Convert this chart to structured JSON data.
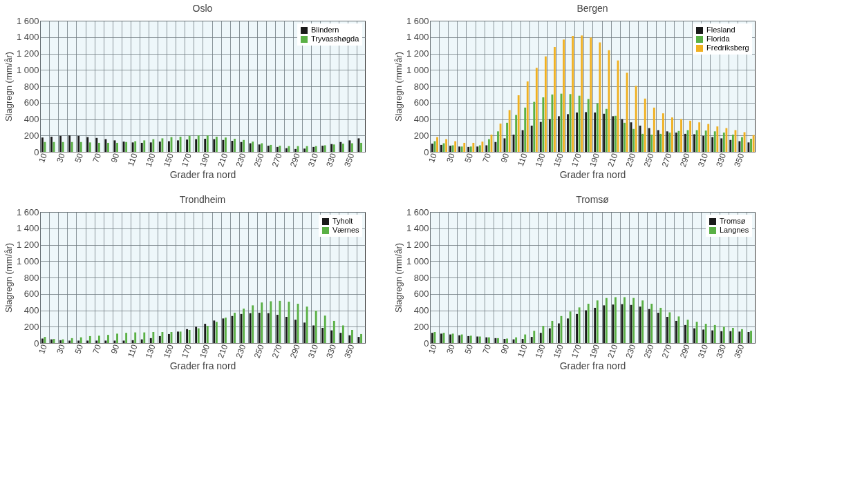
{
  "chart_data": [
    {
      "type": "bar",
      "title": "Oslo",
      "xlabel": "Grader fra nord",
      "ylabel": "Slagregn (mm/år)",
      "categories": [
        "10",
        null,
        "30",
        null,
        "50",
        null,
        "70",
        null,
        "90",
        null,
        "110",
        null,
        "130",
        null,
        "150",
        null,
        "170",
        null,
        "190",
        null,
        "210",
        null,
        "230",
        null,
        "250",
        null,
        "270",
        null,
        "290",
        null,
        "310",
        null,
        "330",
        null,
        "350",
        null
      ],
      "series": [
        {
          "name": "Blindern",
          "color": "#1a1a1a",
          "values": [
            175,
            185,
            195,
            200,
            195,
            180,
            170,
            155,
            140,
            125,
            115,
            110,
            115,
            125,
            130,
            140,
            150,
            155,
            160,
            155,
            145,
            135,
            120,
            105,
            90,
            75,
            60,
            45,
            35,
            40,
            60,
            75,
            95,
            120,
            140,
            165
          ]
        },
        {
          "name": "Tryvasshøgda",
          "color": "#5ab045",
          "values": [
            120,
            120,
            120,
            120,
            120,
            115,
            110,
            110,
            110,
            120,
            130,
            140,
            155,
            165,
            180,
            185,
            195,
            200,
            200,
            185,
            175,
            160,
            145,
            125,
            105,
            85,
            75,
            70,
            70,
            70,
            70,
            80,
            90,
            100,
            105,
            110
          ]
        }
      ],
      "ylim": [
        0,
        1600
      ],
      "yticks": [
        0,
        200,
        400,
        600,
        800,
        {
          "value": 1000,
          "label": "1 000"
        },
        {
          "value": 1200,
          "label": "1 200"
        },
        {
          "value": 1400,
          "label": "1 400"
        },
        {
          "value": 1600,
          "label": "1 600"
        }
      ],
      "grid": true,
      "legend": "top right"
    },
    {
      "type": "bar",
      "title": "Bergen",
      "xlabel": "Grader fra nord",
      "ylabel": "Slagregn (mm/år)",
      "categories": [
        "10",
        null,
        "30",
        null,
        "50",
        null,
        "70",
        null,
        "90",
        null,
        "110",
        null,
        "130",
        null,
        "150",
        null,
        "170",
        null,
        "190",
        null,
        "210",
        null,
        "230",
        null,
        "250",
        null,
        "270",
        null,
        "290",
        null,
        "310",
        null,
        "330",
        null,
        "350",
        null
      ],
      "series": [
        {
          "name": "Flesland",
          "color": "#1a1a1a",
          "values": [
            100,
            85,
            75,
            65,
            60,
            65,
            80,
            120,
            165,
            210,
            265,
            320,
            365,
            400,
            435,
            460,
            480,
            485,
            480,
            465,
            435,
            400,
            360,
            320,
            290,
            265,
            250,
            235,
            220,
            215,
            195,
            180,
            165,
            145,
            130,
            115
          ]
        },
        {
          "name": "Florida",
          "color": "#5ab045",
          "values": [
            130,
            105,
            80,
            65,
            65,
            80,
            155,
            250,
            355,
            450,
            540,
            610,
            665,
            700,
            710,
            705,
            685,
            645,
            590,
            525,
            440,
            355,
            280,
            220,
            210,
            220,
            235,
            255,
            265,
            265,
            260,
            250,
            235,
            210,
            180,
            160
          ]
        },
        {
          "name": "Fredriksberg",
          "color": "#f0b020",
          "values": [
            180,
            155,
            130,
            110,
            110,
            125,
            210,
            345,
            510,
            690,
            860,
            1025,
            1165,
            1280,
            1370,
            1415,
            1420,
            1395,
            1335,
            1240,
            1115,
            965,
            805,
            650,
            540,
            470,
            420,
            400,
            380,
            360,
            340,
            310,
            290,
            265,
            240,
            205
          ]
        }
      ],
      "ylim": [
        0,
        1600
      ],
      "yticks": [
        0,
        200,
        400,
        600,
        800,
        {
          "value": 1000,
          "label": "1 000"
        },
        {
          "value": 1200,
          "label": "1 200"
        },
        {
          "value": 1400,
          "label": "1 400"
        },
        {
          "value": 1600,
          "label": "1 600"
        }
      ],
      "grid": true,
      "legend": "top right"
    },
    {
      "type": "bar",
      "title": "Trondheim",
      "xlabel": "Grader fra nord",
      "ylabel": "Slagregn (mm/år)",
      "categories": [
        "10",
        null,
        "30",
        null,
        "50",
        null,
        "70",
        null,
        "90",
        null,
        "110",
        null,
        "130",
        null,
        "150",
        null,
        "170",
        null,
        "190",
        null,
        "210",
        null,
        "230",
        null,
        "250",
        null,
        "270",
        null,
        "290",
        null,
        "310",
        null,
        "330",
        null,
        "350",
        null
      ],
      "series": [
        {
          "name": "Tyholt",
          "color": "#1a1a1a",
          "values": [
            55,
            45,
            35,
            30,
            30,
            30,
            30,
            30,
            30,
            30,
            35,
            45,
            60,
            85,
            110,
            140,
            170,
            200,
            235,
            275,
            300,
            330,
            355,
            365,
            370,
            365,
            345,
            320,
            285,
            250,
            215,
            185,
            155,
            125,
            95,
            75
          ]
        },
        {
          "name": "Værnes",
          "color": "#5ab045",
          "values": [
            75,
            50,
            45,
            60,
            70,
            85,
            90,
            100,
            115,
            125,
            130,
            130,
            135,
            135,
            135,
            140,
            160,
            180,
            210,
            260,
            310,
            370,
            420,
            460,
            495,
            510,
            515,
            505,
            480,
            445,
            395,
            335,
            270,
            215,
            160,
            110
          ]
        }
      ],
      "ylim": [
        0,
        1600
      ],
      "yticks": [
        0,
        200,
        400,
        600,
        800,
        {
          "value": 1000,
          "label": "1 000"
        },
        {
          "value": 1200,
          "label": "1 200"
        },
        {
          "value": 1400,
          "label": "1 400"
        },
        {
          "value": 1600,
          "label": "1 600"
        }
      ],
      "grid": true,
      "legend": "top right"
    },
    {
      "type": "bar",
      "title": "Tromsø",
      "xlabel": "Grader fra nord",
      "ylabel": "Slagregn (mm/år)",
      "categories": [
        "10",
        null,
        "30",
        null,
        "50",
        null,
        "70",
        null,
        "90",
        null,
        "110",
        null,
        "130",
        null,
        "150",
        null,
        "170",
        null,
        "190",
        null,
        "210",
        null,
        "230",
        null,
        "250",
        null,
        "270",
        null,
        "290",
        null,
        "310",
        null,
        "330",
        null,
        "350",
        null
      ],
      "series": [
        {
          "name": "Tromsø",
          "color": "#1a1a1a",
          "values": [
            125,
            115,
            105,
            95,
            85,
            80,
            70,
            60,
            50,
            45,
            50,
            75,
            125,
            180,
            240,
            300,
            355,
            400,
            430,
            460,
            470,
            475,
            465,
            445,
            415,
            370,
            320,
            270,
            220,
            180,
            165,
            155,
            145,
            145,
            140,
            135
          ]
        },
        {
          "name": "Langnes",
          "color": "#5ab045",
          "values": [
            135,
            125,
            115,
            105,
            90,
            80,
            70,
            60,
            55,
            70,
            105,
            150,
            210,
            270,
            330,
            385,
            435,
            480,
            520,
            550,
            560,
            560,
            550,
            520,
            480,
            430,
            375,
            325,
            285,
            260,
            235,
            220,
            200,
            185,
            170,
            150
          ]
        }
      ],
      "ylim": [
        0,
        1600
      ],
      "yticks": [
        0,
        200,
        400,
        600,
        800,
        {
          "value": 1000,
          "label": "1 000"
        },
        {
          "value": 1200,
          "label": "1 200"
        },
        {
          "value": 1400,
          "label": "1 400"
        },
        {
          "value": 1600,
          "label": "1 600"
        }
      ],
      "grid": true,
      "legend": "top right"
    }
  ]
}
